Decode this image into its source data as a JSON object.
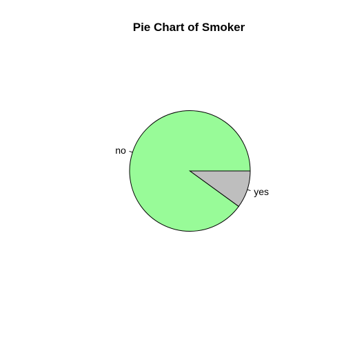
{
  "chart_data": {
    "type": "pie",
    "title": "Pie Chart of Smoker",
    "categories": [
      "no",
      "yes"
    ],
    "values": [
      90,
      10
    ],
    "colors": [
      "#98fb98",
      "#bebebe"
    ],
    "start_angle_deg": 0,
    "direction": "counterclockwise",
    "legend": "none"
  }
}
